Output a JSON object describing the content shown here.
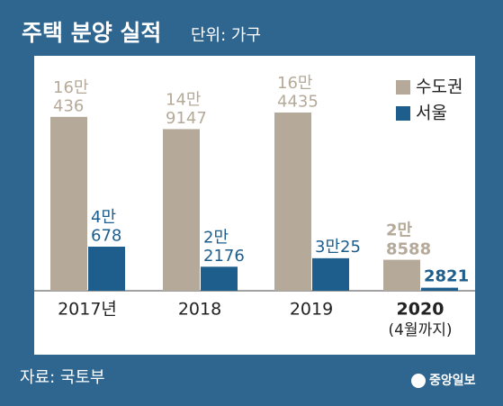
{
  "chart_data": {
    "type": "bar",
    "title": "주택 분양 실적",
    "subtitle": "단위: 가구",
    "categories": [
      "2017년",
      "2018",
      "2019",
      "2020"
    ],
    "category_note": "(4월까지)",
    "series": [
      {
        "name": "수도권",
        "color": "#b5aa99",
        "values": [
          160436,
          149147,
          164435,
          28588
        ],
        "value_labels": [
          "16만\n436",
          "14만\n9147",
          "16만\n4435",
          "2만\n8588"
        ]
      },
      {
        "name": "서울",
        "color": "#1d5e8c",
        "values": [
          40678,
          22176,
          30025,
          2821
        ],
        "value_labels": [
          "4만\n678",
          "2만\n2176",
          "3만25",
          "2821"
        ]
      }
    ],
    "source": "자료: 국토부",
    "logo": "중앙일보"
  }
}
